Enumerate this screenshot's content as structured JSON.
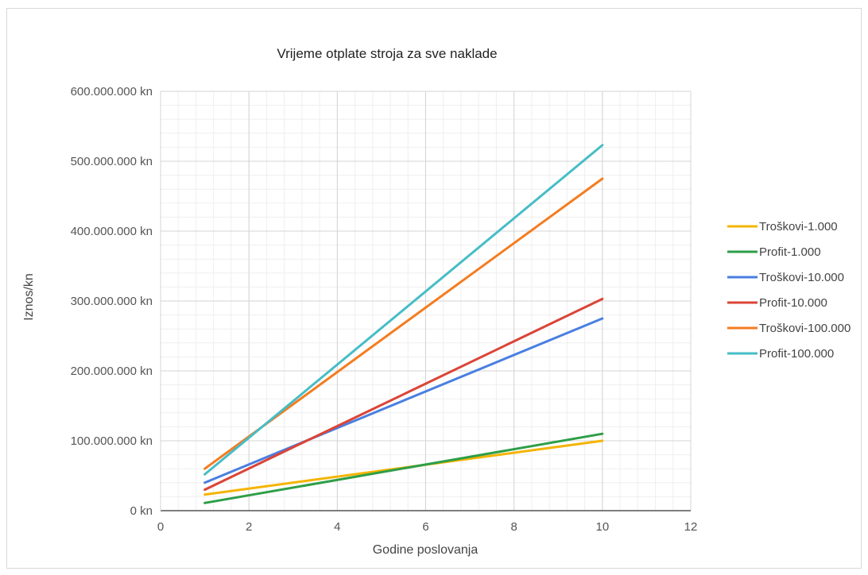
{
  "chart_data": {
    "type": "line",
    "title": "Vrijeme otplate stroja za sve naklade",
    "xlabel": "Godine poslovanja",
    "ylabel": "Iznos/kn",
    "xlim": [
      0,
      12
    ],
    "ylim": [
      0,
      600000000
    ],
    "x_ticks": [
      0,
      2,
      4,
      6,
      8,
      10,
      12
    ],
    "y_ticks": [
      0,
      100000000,
      200000000,
      300000000,
      400000000,
      500000000,
      600000000
    ],
    "x_tick_labels": [
      "0",
      "2",
      "4",
      "6",
      "8",
      "10",
      "12"
    ],
    "y_tick_labels": [
      "0 kn",
      "100.000.000 kn",
      "200.000.000 kn",
      "300.000.000 kn",
      "400.000.000 kn",
      "500.000.000 kn",
      "600.000.000 kn"
    ],
    "grid": true,
    "legend_position": "right",
    "series": [
      {
        "name": "Troškovi-1.000",
        "color": "#f4b400",
        "x": [
          1,
          10
        ],
        "y": [
          23000000,
          100000000
        ]
      },
      {
        "name": "Profit-1.000",
        "color": "#2e9e48",
        "x": [
          1,
          10
        ],
        "y": [
          11000000,
          110000000
        ]
      },
      {
        "name": "Troškovi-10.000",
        "color": "#4a7fe0",
        "x": [
          1,
          10
        ],
        "y": [
          40000000,
          275000000
        ]
      },
      {
        "name": "Profit-10.000",
        "color": "#db4437",
        "x": [
          1,
          10
        ],
        "y": [
          30000000,
          303000000
        ]
      },
      {
        "name": "Troškovi-100.000",
        "color": "#f47c20",
        "x": [
          1,
          10
        ],
        "y": [
          60000000,
          475000000
        ]
      },
      {
        "name": "Profit-100.000",
        "color": "#46bdc6",
        "x": [
          1,
          10
        ],
        "y": [
          52000000,
          523000000
        ]
      }
    ]
  }
}
